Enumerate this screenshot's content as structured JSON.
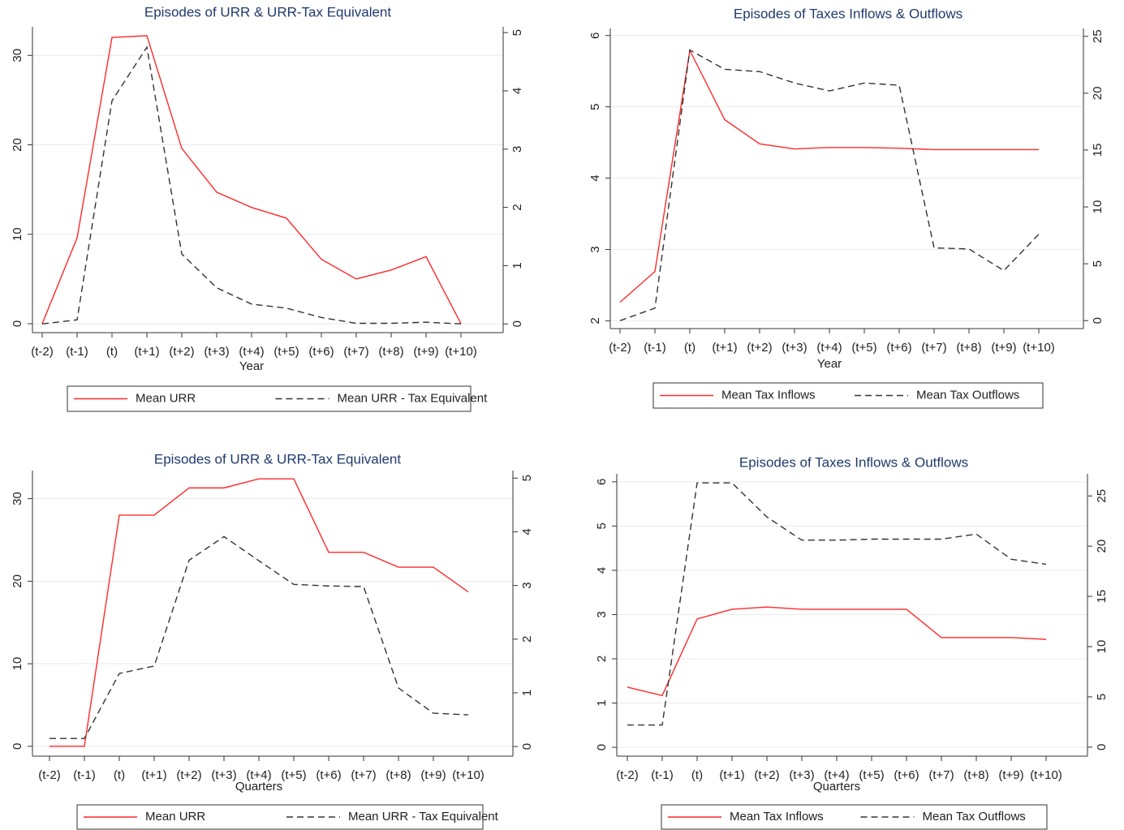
{
  "chart_data": [
    {
      "type": "line",
      "title": "Episodes of URR & URR-Tax Equivalent",
      "xlabel": "Year",
      "categories": [
        "(t-2)",
        "(t-1)",
        "(t)",
        "(t+1)",
        "(t+2)",
        "(t+3)",
        "(t+4)",
        "(t+5)",
        "(t+6)",
        "(t+7)",
        "(t+8)",
        "(t+9)",
        "(t+10)"
      ],
      "series": [
        {
          "name": "Mean URR",
          "color": "#ff2a2a",
          "style": "solid",
          "axis": "y",
          "values": [
            0,
            9.6,
            32,
            32.2,
            19.6,
            14.7,
            13,
            11.8,
            7.2,
            5,
            6,
            7.5,
            0
          ]
        },
        {
          "name": "Mean URR - Tax Equivalent",
          "color": "#333333",
          "style": "dashed",
          "axis": "y2",
          "values": [
            0,
            0.07,
            3.83,
            4.75,
            1.2,
            0.62,
            0.34,
            0.27,
            0.11,
            0.01,
            0.01,
            0.03,
            0
          ]
        }
      ],
      "ylim": [
        -1,
        33.2
      ],
      "yticks": [
        0,
        10,
        20,
        30
      ],
      "y2lim": [
        -0.15,
        5.1
      ],
      "y2ticks": [
        0,
        1,
        2,
        3,
        4,
        5
      ],
      "grid": true
    },
    {
      "type": "line",
      "title": "Episodes of Taxes Inflows & Outflows",
      "xlabel": "Year",
      "categories": [
        "(t-2)",
        "(t-1)",
        "(t)",
        "(t+1)",
        "(t+2)",
        "(t+3)",
        "(t+4)",
        "(t+5)",
        "(t+6)",
        "(t+7)",
        "(t+8)",
        "(t+9)",
        "(t+10)"
      ],
      "series": [
        {
          "name": "Mean Tax Inflows",
          "color": "#ff2a2a",
          "style": "solid",
          "axis": "y",
          "values": [
            2.26,
            2.69,
            5.79,
            4.82,
            4.48,
            4.41,
            4.43,
            4.43,
            4.42,
            4.4,
            4.4,
            4.4,
            4.4
          ]
        },
        {
          "name": "Mean Tax Outflows",
          "color": "#333333",
          "style": "dashed",
          "axis": "y2",
          "values": [
            0,
            1.1,
            23.8,
            22.1,
            21.9,
            20.9,
            20.2,
            20.9,
            20.7,
            6.4,
            6.3,
            4.4,
            7.6
          ]
        }
      ],
      "ylim": [
        1.89,
        6.1
      ],
      "yticks": [
        2,
        3,
        4,
        5,
        6
      ],
      "y2lim": [
        -0.7,
        25.7
      ],
      "y2ticks": [
        0,
        5,
        10,
        15,
        20,
        25
      ],
      "grid": true
    },
    {
      "type": "line",
      "title": "Episodes of URR & URR-Tax Equivalent",
      "xlabel": "Quarters",
      "categories": [
        "(t-2)",
        "(t-1)",
        "(t)",
        "(t+1)",
        "(t+2)",
        "(t+3)",
        "(t+4)",
        "(t+5)",
        "(t+6)",
        "(t+7)",
        "(t+8)",
        "(t+9)",
        "(t+10)"
      ],
      "series": [
        {
          "name": "Mean URR",
          "color": "#ff2a2a",
          "style": "solid",
          "axis": "y",
          "values": [
            0,
            0,
            28,
            28,
            31.3,
            31.3,
            32.4,
            32.4,
            23.5,
            23.5,
            21.7,
            21.7,
            18.7
          ]
        },
        {
          "name": "Mean URR - Tax Equivalent",
          "color": "#333333",
          "style": "dashed",
          "axis": "y2",
          "values": [
            0.15,
            0.15,
            1.36,
            1.5,
            3.47,
            3.91,
            3.46,
            3.02,
            2.99,
            2.98,
            1.09,
            0.62,
            0.59
          ]
        }
      ],
      "ylim": [
        -1.2,
        33.4
      ],
      "yticks": [
        0,
        10,
        20,
        30
      ],
      "y2lim": [
        -0.18,
        5.14
      ],
      "y2ticks": [
        0,
        1,
        2,
        3,
        4,
        5
      ],
      "grid": true
    },
    {
      "type": "line",
      "title": "Episodes of Taxes Inflows & Outflows",
      "xlabel": "Quarters",
      "categories": [
        "(t-2)",
        "(t-1)",
        "(t)",
        "(t+1)",
        "(t+2)",
        "(t+3)",
        "(t+4)",
        "(t+5)",
        "(t+6)",
        "(t+7)",
        "(t+8)",
        "(t+9)",
        "(t+10)"
      ],
      "series": [
        {
          "name": "Mean Tax Inflows",
          "color": "#ff2a2a",
          "style": "solid",
          "axis": "y",
          "values": [
            1.36,
            1.17,
            2.9,
            3.12,
            3.17,
            3.12,
            3.12,
            3.12,
            3.12,
            2.48,
            2.48,
            2.48,
            2.44
          ]
        },
        {
          "name": "Mean Tax Outflows",
          "color": "#333333",
          "style": "dashed",
          "axis": "y2",
          "values": [
            2.2,
            2.2,
            26.3,
            26.3,
            22.9,
            20.6,
            20.6,
            20.7,
            20.7,
            20.7,
            21.2,
            18.7,
            18.2
          ]
        }
      ],
      "ylim": [
        -0.2,
        6.18
      ],
      "yticks": [
        0,
        1,
        2,
        3,
        4,
        5,
        6
      ],
      "y2lim": [
        -0.9,
        27.2
      ],
      "y2ticks": [
        0,
        5,
        10,
        15,
        20,
        25
      ],
      "grid": true
    }
  ]
}
